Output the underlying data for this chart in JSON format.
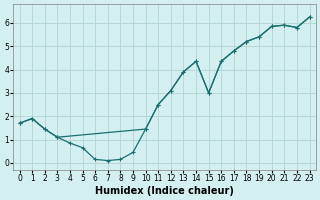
{
  "xlabel": "Humidex (Indice chaleur)",
  "bg_color": "#d4efef",
  "line_color": "#1a7070",
  "grid_color": "#b8d8d8",
  "line_a_x": [
    0,
    1,
    2,
    3,
    10,
    11,
    12,
    13,
    14,
    15,
    16,
    17,
    18,
    19,
    20,
    21,
    22,
    23
  ],
  "line_a_y": [
    1.7,
    1.9,
    1.45,
    1.1,
    1.45,
    2.5,
    3.1,
    3.9,
    4.35,
    3.0,
    4.35,
    4.8,
    5.2,
    5.4,
    5.85,
    5.9,
    5.8,
    6.25
  ],
  "line_b_x": [
    0,
    1,
    2,
    3,
    4,
    5,
    6,
    7,
    8,
    9,
    10,
    11,
    12,
    13,
    14,
    15,
    16,
    17,
    18,
    19,
    20,
    21,
    22,
    23
  ],
  "line_b_y": [
    1.7,
    1.9,
    1.45,
    1.1,
    0.85,
    0.65,
    0.15,
    0.1,
    0.15,
    0.45,
    1.45,
    2.5,
    3.1,
    3.9,
    4.35,
    3.0,
    4.35,
    4.8,
    5.2,
    5.4,
    5.85,
    5.9,
    5.8,
    6.25
  ],
  "xlim": [
    -0.5,
    23.5
  ],
  "ylim": [
    -0.3,
    6.8
  ],
  "xticks": [
    0,
    1,
    2,
    3,
    4,
    5,
    6,
    7,
    8,
    9,
    10,
    11,
    12,
    13,
    14,
    15,
    16,
    17,
    18,
    19,
    20,
    21,
    22,
    23
  ],
  "yticks": [
    0,
    1,
    2,
    3,
    4,
    5,
    6
  ],
  "tick_fontsize": 5.5,
  "xlabel_fontsize": 7
}
